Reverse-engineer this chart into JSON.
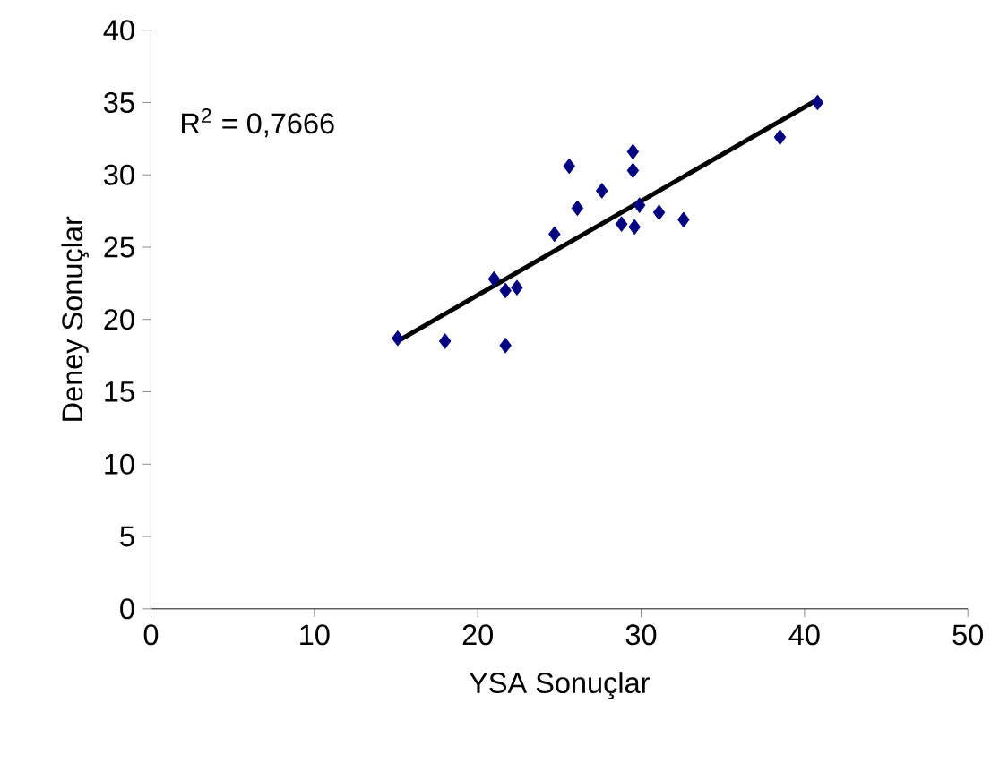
{
  "chart_data": {
    "type": "scatter",
    "xlabel": "YSA Sonuçlar",
    "ylabel": "Deney Sonuçlar",
    "xlim": [
      0,
      50
    ],
    "ylim": [
      0,
      40
    ],
    "xticks": [
      0,
      10,
      20,
      30,
      40,
      50
    ],
    "yticks": [
      0,
      5,
      10,
      15,
      20,
      25,
      30,
      35,
      40
    ],
    "grid": false,
    "marker": "diamond",
    "annotations": [
      "R$^{2}$ = 0,7666"
    ],
    "series": [
      {
        "color": "#000080",
        "x": [
          15.1,
          18.0,
          21.7,
          21.0,
          21.7,
          22.4,
          24.7,
          25.6,
          26.1,
          27.6,
          28.8,
          29.6,
          29.9,
          29.5,
          29.5,
          31.1,
          32.6,
          38.5,
          40.8
        ],
        "values": [
          18.7,
          18.5,
          18.2,
          22.8,
          22.0,
          22.2,
          25.9,
          30.6,
          27.7,
          28.9,
          26.6,
          26.4,
          27.9,
          31.6,
          30.3,
          27.4,
          26.9,
          32.6,
          35.0
        ]
      },
      {
        "type": "line",
        "color": "#000000",
        "line_style": "solid",
        "marker": "none",
        "x": [
          15.1,
          40.8
        ],
        "values": [
          18.5,
          35.2
        ]
      }
    ]
  }
}
